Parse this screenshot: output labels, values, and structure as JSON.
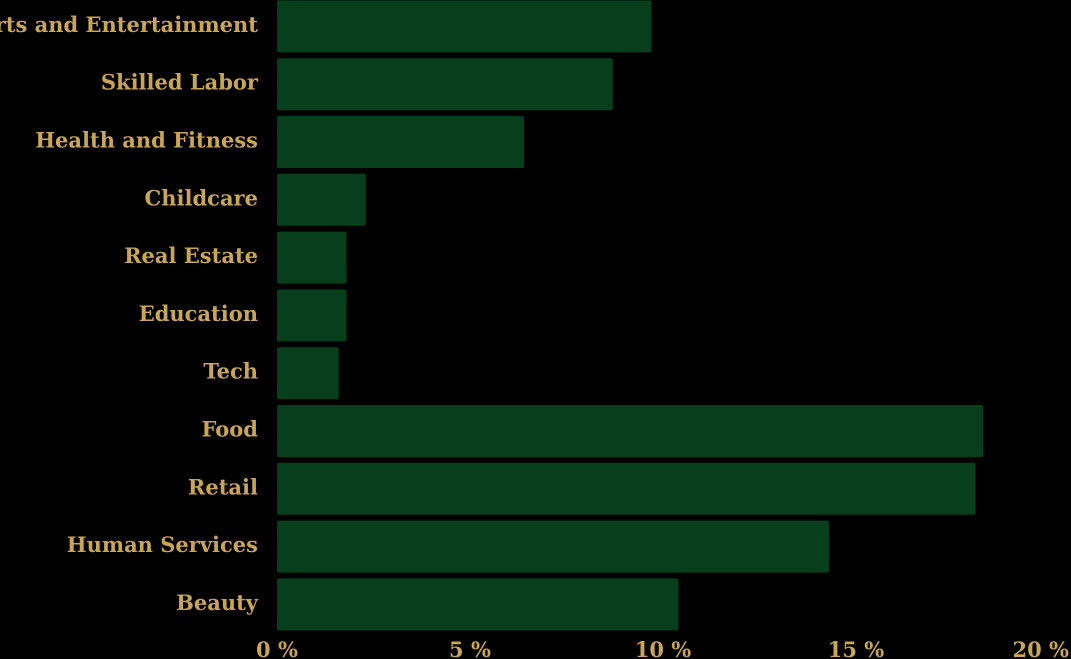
{
  "chart_data": {
    "type": "bar",
    "orientation": "horizontal",
    "categories": [
      "Arts and Entertainment",
      "Skilled Labor",
      "Health and Fitness",
      "Childcare",
      "Real Estate",
      "Education",
      "Tech",
      "Food",
      "Retail",
      "Human Services",
      "Beauty"
    ],
    "values": [
      9.7,
      8.7,
      6.4,
      2.3,
      1.8,
      1.8,
      1.6,
      18.3,
      18.1,
      14.3,
      10.4
    ],
    "xlim": [
      0,
      20
    ],
    "xticks": [
      0,
      5,
      10,
      15,
      20
    ],
    "xtick_labels": [
      "0 %",
      "5 %",
      "10 %",
      "15 %",
      "20 %"
    ],
    "title": "",
    "xlabel": "",
    "ylabel": "",
    "grid": false,
    "colors": {
      "background": "#000000",
      "bar": "#073f1c",
      "text": "#c9a556"
    }
  }
}
